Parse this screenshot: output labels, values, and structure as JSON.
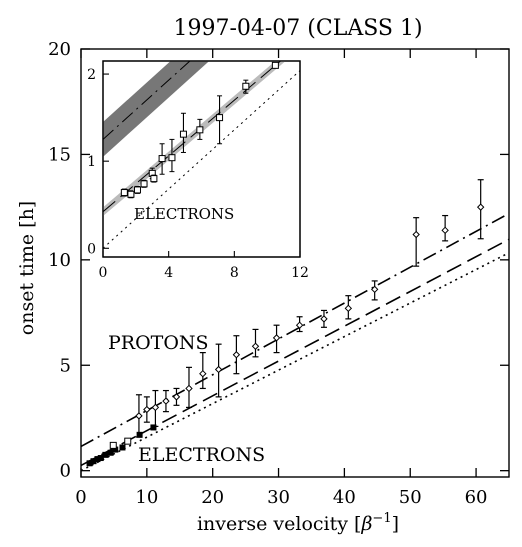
{
  "chart_data": [
    {
      "type": "scatter",
      "title": "1997-04-07 (CLASS 1)",
      "xlabel": "inverse velocity [β⁻¹]",
      "xlabel_main": "inverse velocity [",
      "xlabel_sym": "β",
      "xlabel_sup": "−1",
      "xlabel_end": "]",
      "ylabel": "onset time [h]",
      "xlim": [
        0,
        65
      ],
      "ylim": [
        -0.3,
        20
      ],
      "xticks": [
        0,
        10,
        20,
        30,
        40,
        50,
        60
      ],
      "yticks": [
        0,
        5,
        10,
        15,
        20
      ],
      "annotations": [
        "PROTONS",
        "ELECTRONS"
      ],
      "series": [
        {
          "marker": "diamond-errorbar",
          "points": [
            {
              "x": 8.8,
              "y": 2.6,
              "lo": 1.6,
              "hi": 3.6
            },
            {
              "x": 10.0,
              "y": 2.9,
              "lo": 2.3,
              "hi": 3.5
            },
            {
              "x": 11.3,
              "y": 3.0,
              "lo": 2.1,
              "hi": 3.8
            },
            {
              "x": 12.9,
              "y": 3.3,
              "lo": 2.8,
              "hi": 3.8
            },
            {
              "x": 14.5,
              "y": 3.5,
              "lo": 3.1,
              "hi": 3.9
            },
            {
              "x": 16.4,
              "y": 3.9,
              "lo": 3.0,
              "hi": 4.9
            },
            {
              "x": 18.5,
              "y": 4.6,
              "lo": 3.9,
              "hi": 5.6
            },
            {
              "x": 20.9,
              "y": 4.8,
              "lo": 3.5,
              "hi": 6.0
            },
            {
              "x": 23.6,
              "y": 5.5,
              "lo": 4.6,
              "hi": 6.4
            },
            {
              "x": 26.5,
              "y": 5.9,
              "lo": 5.4,
              "hi": 6.7
            },
            {
              "x": 29.7,
              "y": 6.3,
              "lo": 5.6,
              "hi": 6.9
            },
            {
              "x": 33.2,
              "y": 6.9,
              "lo": 6.6,
              "hi": 7.3
            },
            {
              "x": 36.9,
              "y": 7.2,
              "lo": 6.8,
              "hi": 7.6
            },
            {
              "x": 40.6,
              "y": 7.7,
              "lo": 7.2,
              "hi": 8.3
            },
            {
              "x": 44.6,
              "y": 8.6,
              "lo": 8.1,
              "hi": 9.0
            },
            {
              "x": 50.9,
              "y": 11.2,
              "lo": 9.7,
              "hi": 12.0
            },
            {
              "x": 55.3,
              "y": 11.4,
              "lo": 10.9,
              "hi": 12.1
            },
            {
              "x": 60.7,
              "y": 12.5,
              "lo": 11.0,
              "hi": 13.8
            }
          ]
        },
        {
          "marker": "filled-square",
          "points": [
            {
              "x": 1.3,
              "y": 0.35
            },
            {
              "x": 1.9,
              "y": 0.45
            },
            {
              "x": 2.5,
              "y": 0.55
            },
            {
              "x": 3.0,
              "y": 0.6
            },
            {
              "x": 3.7,
              "y": 0.75
            },
            {
              "x": 4.5,
              "y": 0.85
            },
            {
              "x": 5.2,
              "y": 1.0
            },
            {
              "x": 6.3,
              "y": 1.1
            },
            {
              "x": 8.9,
              "y": 1.7
            },
            {
              "x": 11.0,
              "y": 2.05
            }
          ]
        },
        {
          "marker": "open-square",
          "points": [
            {
              "x": 4.9,
              "y": 1.2
            },
            {
              "x": 7.1,
              "y": 1.4
            }
          ]
        }
      ],
      "lines": [
        {
          "style": "dash-dot",
          "y0": 1.15,
          "slope": 0.17
        },
        {
          "style": "long-dash",
          "y0": 0.25,
          "slope": 0.165
        },
        {
          "style": "dotted",
          "y0": 0.0,
          "slope": 0.159
        }
      ]
    },
    {
      "type": "scatter",
      "name": "inset",
      "xlim": [
        0,
        12
      ],
      "ylim": [
        -0.1,
        2.15
      ],
      "xticks": [
        0,
        4,
        8,
        12
      ],
      "yticks": [
        0,
        1,
        2
      ],
      "annotations": [
        "ELECTRONS"
      ],
      "series": [
        {
          "marker": "open-square-errorbar",
          "points": [
            {
              "x": 1.3,
              "y": 0.64,
              "lo": 0.6,
              "hi": 0.68
            },
            {
              "x": 1.7,
              "y": 0.62,
              "lo": 0.58,
              "hi": 0.66
            },
            {
              "x": 2.1,
              "y": 0.67,
              "lo": 0.63,
              "hi": 0.71
            },
            {
              "x": 2.5,
              "y": 0.74,
              "lo": 0.7,
              "hi": 0.78
            },
            {
              "x": 3.0,
              "y": 0.86,
              "lo": 0.8,
              "hi": 0.92
            },
            {
              "x": 3.1,
              "y": 0.8,
              "lo": 0.76,
              "hi": 0.84
            },
            {
              "x": 3.6,
              "y": 1.03,
              "lo": 0.85,
              "hi": 1.2
            },
            {
              "x": 4.2,
              "y": 1.04,
              "lo": 0.88,
              "hi": 1.25
            },
            {
              "x": 4.9,
              "y": 1.31,
              "lo": 1.1,
              "hi": 1.55
            },
            {
              "x": 5.9,
              "y": 1.36,
              "lo": 1.25,
              "hi": 1.48
            },
            {
              "x": 7.1,
              "y": 1.5,
              "lo": 1.2,
              "hi": 1.75
            },
            {
              "x": 8.7,
              "y": 1.86,
              "lo": 1.78,
              "hi": 1.93
            },
            {
              "x": 10.5,
              "y": 2.1,
              "lo": 2.07,
              "hi": 2.13
            }
          ]
        }
      ],
      "bands": [
        {
          "color": "#bbbbbb",
          "y0": 0.42,
          "slope": 0.16,
          "halfwidth": 0.05
        },
        {
          "color": "#777777",
          "y0": 1.25,
          "slope": 0.17,
          "halfwidth": 0.2
        }
      ],
      "lines": [
        {
          "style": "dash-dot",
          "y0": 1.25,
          "slope": 0.17
        },
        {
          "style": "long-dash",
          "y0": 0.42,
          "slope": 0.16
        },
        {
          "style": "dotted",
          "y0": 0.0,
          "slope": 0.17
        }
      ]
    }
  ]
}
